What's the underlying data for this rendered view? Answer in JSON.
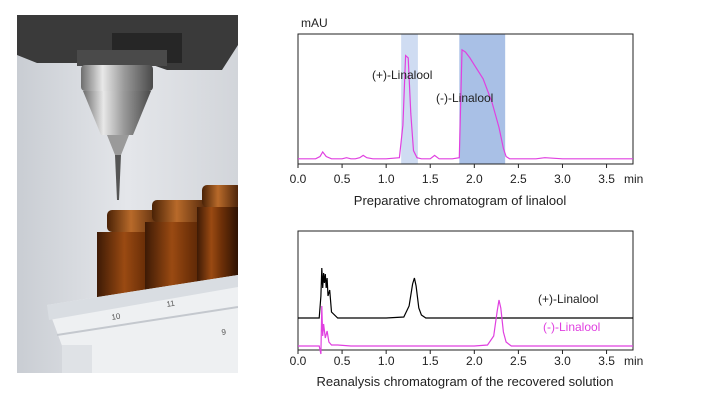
{
  "photo": {
    "description_icon": "autosampler-needle-and-vials-photo",
    "vial_marks": [
      "10",
      "11",
      "9"
    ]
  },
  "chart_data": [
    {
      "type": "line",
      "xlabel": "min",
      "ylabel": "mAU",
      "title": "Preparative chromatogram of linalool",
      "xlim": [
        0,
        3.8
      ],
      "xticks": [
        "0.0",
        "0.5",
        "1.0",
        "1.5",
        "2.0",
        "2.5",
        "3.0",
        "3.5"
      ],
      "fractions": [
        {
          "label": "(+)-Linalool",
          "x_start": 1.17,
          "x_end": 1.36,
          "color": "#cfdcf2"
        },
        {
          "label": "(-)-Linalool",
          "x_start": 1.83,
          "x_end": 2.35,
          "color": "#a9c0e6"
        }
      ],
      "series": [
        {
          "color": "#e040e0",
          "x": [
            0,
            0.2,
            0.25,
            0.28,
            0.32,
            0.38,
            0.5,
            0.55,
            0.6,
            0.65,
            0.7,
            0.74,
            0.78,
            0.85,
            1.0,
            1.15,
            1.19,
            1.22,
            1.25,
            1.28,
            1.31,
            1.35,
            1.4,
            1.5,
            1.55,
            1.6,
            1.65,
            1.75,
            1.83,
            1.86,
            1.9,
            1.95,
            2.0,
            2.1,
            2.2,
            2.28,
            2.33,
            2.36,
            2.4,
            2.5,
            2.7,
            2.8,
            3.0,
            3.2,
            3.5,
            3.8
          ],
          "y": [
            1,
            1,
            3,
            7,
            3,
            1,
            1,
            2,
            1,
            1,
            2,
            4,
            2,
            1,
            1,
            2,
            30,
            90,
            88,
            40,
            8,
            2,
            1,
            1,
            4,
            1,
            1,
            1,
            2,
            95,
            93,
            88,
            82,
            70,
            50,
            28,
            10,
            3,
            1,
            1,
            1,
            2,
            1,
            1,
            1,
            1
          ]
        }
      ]
    },
    {
      "type": "line",
      "xlabel": "min",
      "title": "Reanalysis chromatogram of the recovered solution",
      "xlim": [
        0,
        3.8
      ],
      "xticks": [
        "0.0",
        "0.5",
        "1.0",
        "1.5",
        "2.0",
        "2.5",
        "3.0",
        "3.5"
      ],
      "series": [
        {
          "name": "(+)-Linalool",
          "color": "#000000",
          "offset": 32,
          "x": [
            0,
            0.24,
            0.26,
            0.27,
            0.28,
            0.29,
            0.3,
            0.31,
            0.32,
            0.33,
            0.34,
            0.36,
            0.38,
            0.45,
            1.0,
            1.2,
            1.26,
            1.3,
            1.32,
            1.34,
            1.37,
            1.4,
            1.45,
            1.6,
            3.8
          ],
          "y": [
            0,
            0,
            22,
            50,
            30,
            45,
            35,
            44,
            30,
            40,
            22,
            28,
            6,
            0,
            0,
            1,
            12,
            34,
            40,
            32,
            10,
            3,
            0,
            0,
            0
          ]
        },
        {
          "name": "(-)-Linalool",
          "color": "#e040e0",
          "offset": 4,
          "x": [
            0,
            0.24,
            0.26,
            0.27,
            0.28,
            0.29,
            0.31,
            0.33,
            0.35,
            0.38,
            0.45,
            0.6,
            2.0,
            2.15,
            2.22,
            2.26,
            2.28,
            2.3,
            2.33,
            2.36,
            2.42,
            2.6,
            3.8
          ],
          "y": [
            0,
            0,
            -8,
            40,
            10,
            22,
            8,
            15,
            4,
            1,
            1,
            0,
            0,
            1,
            10,
            35,
            46,
            38,
            14,
            4,
            0,
            0,
            0
          ]
        }
      ]
    }
  ]
}
